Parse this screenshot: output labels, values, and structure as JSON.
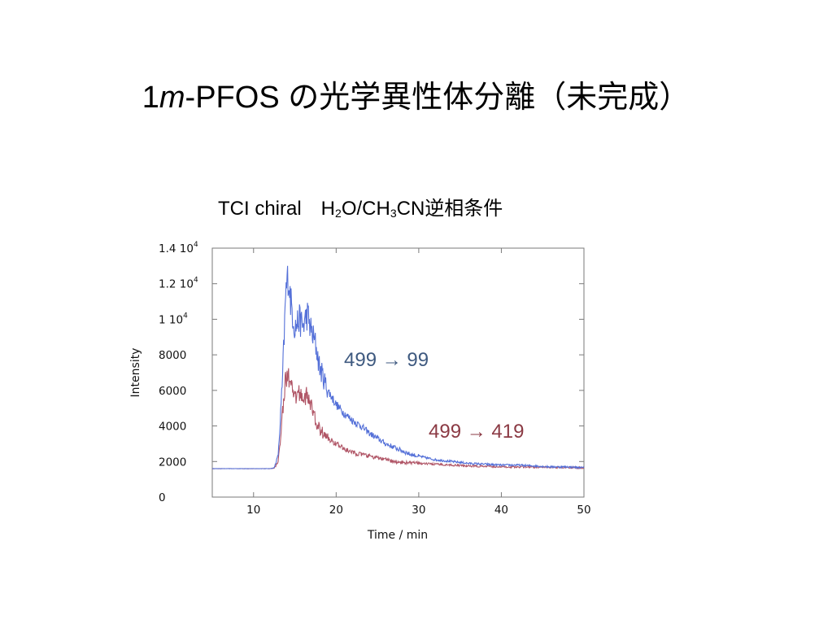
{
  "slide": {
    "title_prefix": "1",
    "title_italic": "m",
    "title_rest": "-PFOS の光学異性体分離（未完成）",
    "subtitle": {
      "part1": "TCI chiral　H",
      "sub1": "2",
      "part2": "O/CH",
      "sub2": "3",
      "part3": "CN逆相条件"
    }
  },
  "chart_data": {
    "type": "line",
    "xlabel": "Time / min",
    "ylabel": "Intensity",
    "xlim": [
      5,
      50
    ],
    "ylim": [
      0,
      14000
    ],
    "x_ticks": [
      10,
      20,
      30,
      40,
      50
    ],
    "y_ticks": [
      {
        "value": 0,
        "label": "0"
      },
      {
        "value": 2000,
        "label": "2000"
      },
      {
        "value": 4000,
        "label": "4000"
      },
      {
        "value": 6000,
        "label": "6000"
      },
      {
        "value": 8000,
        "label": "8000"
      },
      {
        "value": 10000,
        "label": "1 10",
        "exp": "4"
      },
      {
        "value": 12000,
        "label": "1.2 10",
        "exp": "4"
      },
      {
        "value": 14000,
        "label": "1.4 10",
        "exp": "4"
      }
    ],
    "grid": "ticks-only",
    "series": [
      {
        "name": "499 → 99",
        "color": "#5470d8",
        "label_color": "#3f5a80",
        "points": [
          [
            5,
            1600
          ],
          [
            12,
            1600
          ],
          [
            12.5,
            1650
          ],
          [
            13,
            2400
          ],
          [
            13.5,
            6500
          ],
          [
            13.9,
            11500
          ],
          [
            14.2,
            12500
          ],
          [
            14.5,
            11000
          ],
          [
            15,
            9500
          ],
          [
            15.5,
            10000
          ],
          [
            16,
            9600
          ],
          [
            16.5,
            10300
          ],
          [
            17,
            9300
          ],
          [
            17.5,
            8600
          ],
          [
            18,
            7300
          ],
          [
            19,
            6000
          ],
          [
            20,
            5200
          ],
          [
            21,
            4700
          ],
          [
            22,
            4300
          ],
          [
            23,
            4000
          ],
          [
            24,
            3600
          ],
          [
            25,
            3300
          ],
          [
            26,
            3000
          ],
          [
            27,
            2800
          ],
          [
            28,
            2600
          ],
          [
            29,
            2400
          ],
          [
            30,
            2300
          ],
          [
            32,
            2100
          ],
          [
            34,
            2000
          ],
          [
            36,
            1900
          ],
          [
            38,
            1850
          ],
          [
            40,
            1800
          ],
          [
            42,
            1800
          ],
          [
            44,
            1750
          ],
          [
            46,
            1700
          ],
          [
            48,
            1700
          ],
          [
            50,
            1650
          ]
        ]
      },
      {
        "name": "499 → 419",
        "color": "#b05566",
        "label_color": "#8b3a44",
        "points": [
          [
            5,
            1600
          ],
          [
            12,
            1600
          ],
          [
            12.5,
            1620
          ],
          [
            13,
            2000
          ],
          [
            13.5,
            4800
          ],
          [
            13.9,
            6700
          ],
          [
            14.2,
            6900
          ],
          [
            14.5,
            6200
          ],
          [
            15,
            5500
          ],
          [
            15.5,
            5900
          ],
          [
            16,
            5600
          ],
          [
            16.5,
            5700
          ],
          [
            17,
            5100
          ],
          [
            17.5,
            4300
          ],
          [
            18,
            3800
          ],
          [
            19,
            3300
          ],
          [
            20,
            3000
          ],
          [
            21,
            2700
          ],
          [
            22,
            2500
          ],
          [
            23,
            2400
          ],
          [
            24,
            2300
          ],
          [
            25,
            2200
          ],
          [
            26,
            2100
          ],
          [
            27,
            2000
          ],
          [
            28,
            1950
          ],
          [
            30,
            1900
          ],
          [
            32,
            1850
          ],
          [
            34,
            1800
          ],
          [
            36,
            1750
          ],
          [
            40,
            1700
          ],
          [
            45,
            1680
          ],
          [
            50,
            1650
          ]
        ]
      }
    ]
  }
}
